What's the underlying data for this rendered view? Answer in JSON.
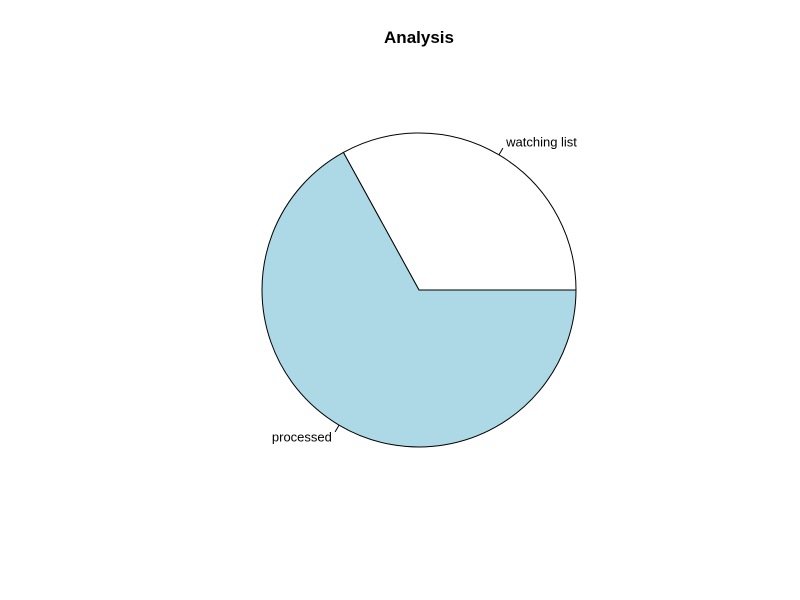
{
  "chart_data": {
    "type": "pie",
    "title": "Analysis",
    "slices": [
      {
        "label": "watching list",
        "value": 33,
        "color": "#ffffff"
      },
      {
        "label": "processed",
        "value": 67,
        "color": "#add8e6"
      }
    ],
    "start_angle": "0 deg (3 o'clock), counter-clockwise",
    "legend": "none",
    "outline_color": "#000000"
  }
}
